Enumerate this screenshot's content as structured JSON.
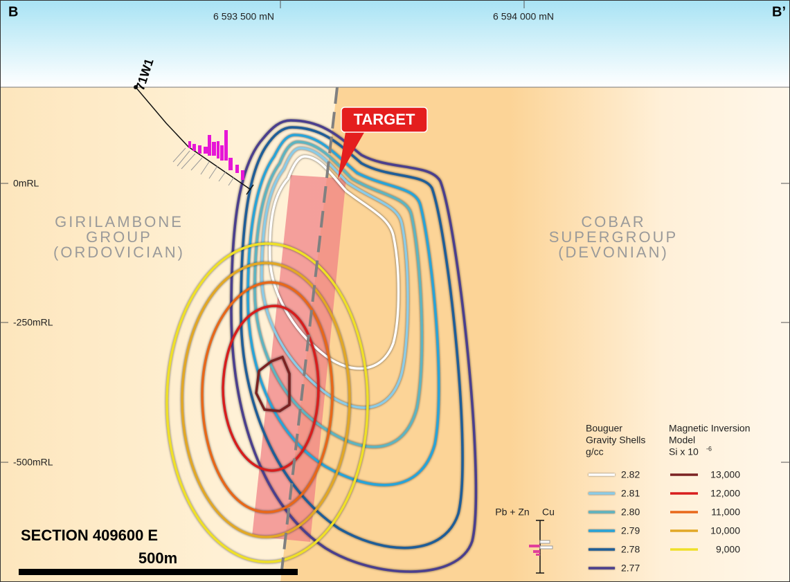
{
  "section": {
    "end_left": "B",
    "end_right": "B’",
    "northings": [
      "6 593 500 mN",
      "6 594 000 mN"
    ],
    "levels": [
      "0mRL",
      "-250mRL",
      "-500mRL"
    ],
    "drillhole": "71W1",
    "target": "TARGET",
    "units": {
      "left": [
        "GIRILAMBONE",
        "GROUP",
        "(ORDOVICIAN)"
      ],
      "right": [
        "COBAR",
        "SUPERGROUP",
        "(DEVONIAN)"
      ]
    },
    "title": "SECTION 409600 E",
    "scale": "500m",
    "assay_labels": [
      "Pb + Zn",
      "Cu"
    ]
  },
  "legend": {
    "gravity": {
      "title": [
        "Bouguer",
        "Gravity Shells",
        "g/cc"
      ],
      "entries": [
        {
          "label": "2.82",
          "color": "#ffffff"
        },
        {
          "label": "2.81",
          "color": "#8ccbe6"
        },
        {
          "label": "2.80",
          "color": "#5fb4c0"
        },
        {
          "label": "2.79",
          "color": "#29a4d8"
        },
        {
          "label": "2.78",
          "color": "#1f5e98"
        },
        {
          "label": "2.77",
          "color": "#4b3f8e"
        }
      ]
    },
    "magnetic": {
      "title": [
        "Magnetic Inversion",
        "Model"
      ],
      "unit": {
        "base": "Si x 10",
        "exponent": "-6"
      },
      "entries": [
        {
          "label": "13,000",
          "color": "#7b2222"
        },
        {
          "label": "12,000",
          "color": "#d81e1e"
        },
        {
          "label": "11,000",
          "color": "#e8681a"
        },
        {
          "label": "10,000",
          "color": "#e2a826"
        },
        {
          "label": "9,000",
          "color": "#efe028"
        }
      ]
    }
  }
}
